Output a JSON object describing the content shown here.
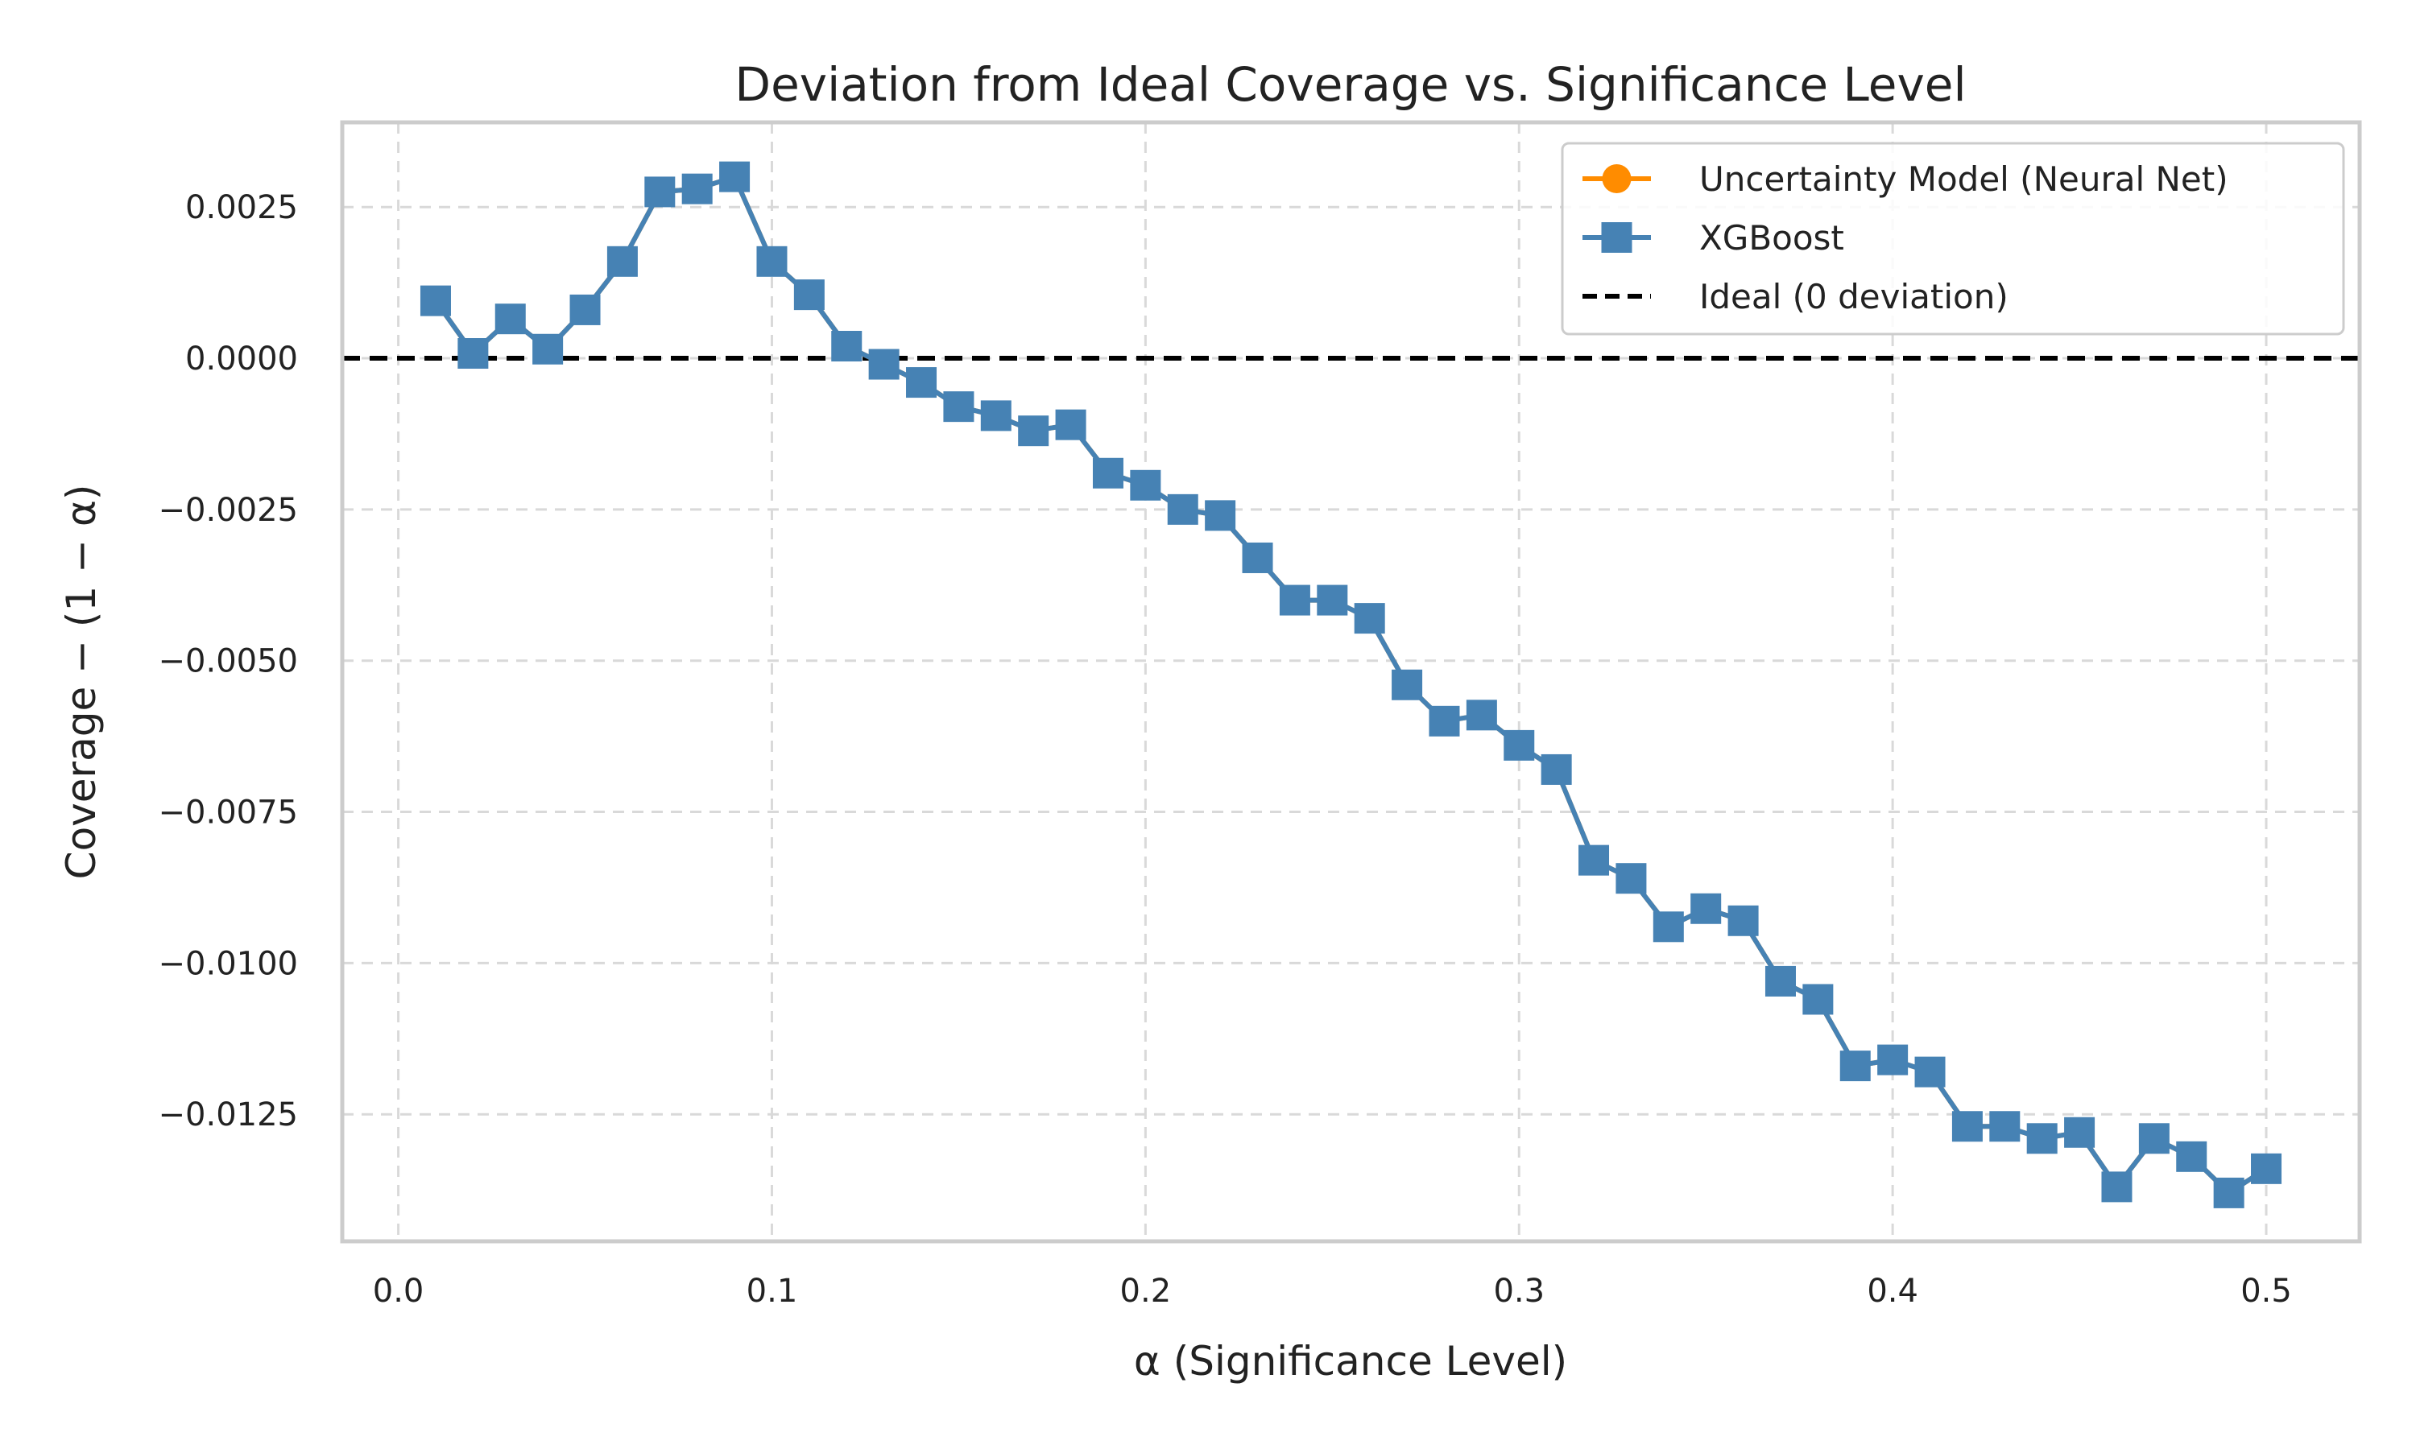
{
  "chart_data": {
    "type": "line",
    "title": "Deviation from Ideal Coverage vs. Significance Level",
    "xlabel": "α (Significance Level)",
    "ylabel": "Coverage − (1 − α)",
    "xlim": [
      -0.015,
      0.525
    ],
    "ylim": [
      -0.0146,
      0.0039
    ],
    "xticks": [
      0.0,
      0.1,
      0.2,
      0.3,
      0.4,
      0.5
    ],
    "xtick_labels": [
      "0.0",
      "0.1",
      "0.2",
      "0.3",
      "0.4",
      "0.5"
    ],
    "yticks": [
      0.0025,
      0.0,
      -0.0025,
      -0.005,
      -0.0075,
      -0.01,
      -0.0125
    ],
    "ytick_labels": [
      "0.0025",
      "0.0000",
      "−0.0025",
      "−0.0050",
      "−0.0075",
      "−0.0100",
      "−0.0125"
    ],
    "grid": true,
    "legend_position": "top-right",
    "x": [
      0.01,
      0.02,
      0.03,
      0.04,
      0.05,
      0.06,
      0.07,
      0.08,
      0.09,
      0.1,
      0.11,
      0.12,
      0.13,
      0.14,
      0.15,
      0.16,
      0.17,
      0.18,
      0.19,
      0.2,
      0.21,
      0.22,
      0.23,
      0.24,
      0.25,
      0.26,
      0.27,
      0.28,
      0.29,
      0.3,
      0.31,
      0.32,
      0.33,
      0.34,
      0.35,
      0.36,
      0.37,
      0.38,
      0.39,
      0.4,
      0.41,
      0.42,
      0.43,
      0.44,
      0.45,
      0.46,
      0.47,
      0.48,
      0.49,
      0.5
    ],
    "series": [
      {
        "name": "Uncertainty Model (Neural Net)",
        "color": "#ff8c00",
        "marker": "circle",
        "values": [
          0.00095,
          8e-05,
          0.00065,
          0.00015,
          0.0008,
          0.0016,
          0.00275,
          0.0028,
          0.003,
          0.0016,
          0.00105,
          0.0002,
          -0.0001,
          -0.0004,
          -0.0008,
          -0.00095,
          -0.0012,
          -0.0011,
          -0.0019,
          -0.0021,
          -0.0025,
          -0.0026,
          -0.0033,
          -0.004,
          -0.004,
          -0.0043,
          -0.0054,
          -0.006,
          -0.0059,
          -0.0064,
          -0.0068,
          -0.0083,
          -0.0086,
          -0.0094,
          -0.0091,
          -0.0093,
          -0.0103,
          -0.0106,
          -0.0117,
          -0.0116,
          -0.0118,
          -0.0127,
          -0.0127,
          -0.0129,
          -0.0128,
          -0.0137,
          -0.0129,
          -0.0132,
          -0.0138,
          -0.0134
        ]
      },
      {
        "name": "XGBoost",
        "color": "#4682b4",
        "marker": "square",
        "values": [
          0.00095,
          8e-05,
          0.00065,
          0.00015,
          0.0008,
          0.0016,
          0.00275,
          0.0028,
          0.003,
          0.0016,
          0.00105,
          0.0002,
          -0.0001,
          -0.0004,
          -0.0008,
          -0.00095,
          -0.0012,
          -0.0011,
          -0.0019,
          -0.0021,
          -0.0025,
          -0.0026,
          -0.0033,
          -0.004,
          -0.004,
          -0.0043,
          -0.0054,
          -0.006,
          -0.0059,
          -0.0064,
          -0.0068,
          -0.0083,
          -0.0086,
          -0.0094,
          -0.0091,
          -0.0093,
          -0.0103,
          -0.0106,
          -0.0117,
          -0.0116,
          -0.0118,
          -0.0127,
          -0.0127,
          -0.0129,
          -0.0128,
          -0.0137,
          -0.0129,
          -0.0132,
          -0.0138,
          -0.0134
        ]
      }
    ],
    "reference_line": {
      "name": "Ideal (0 deviation)",
      "y": 0.0,
      "color": "#000000",
      "style": "dashed"
    }
  }
}
